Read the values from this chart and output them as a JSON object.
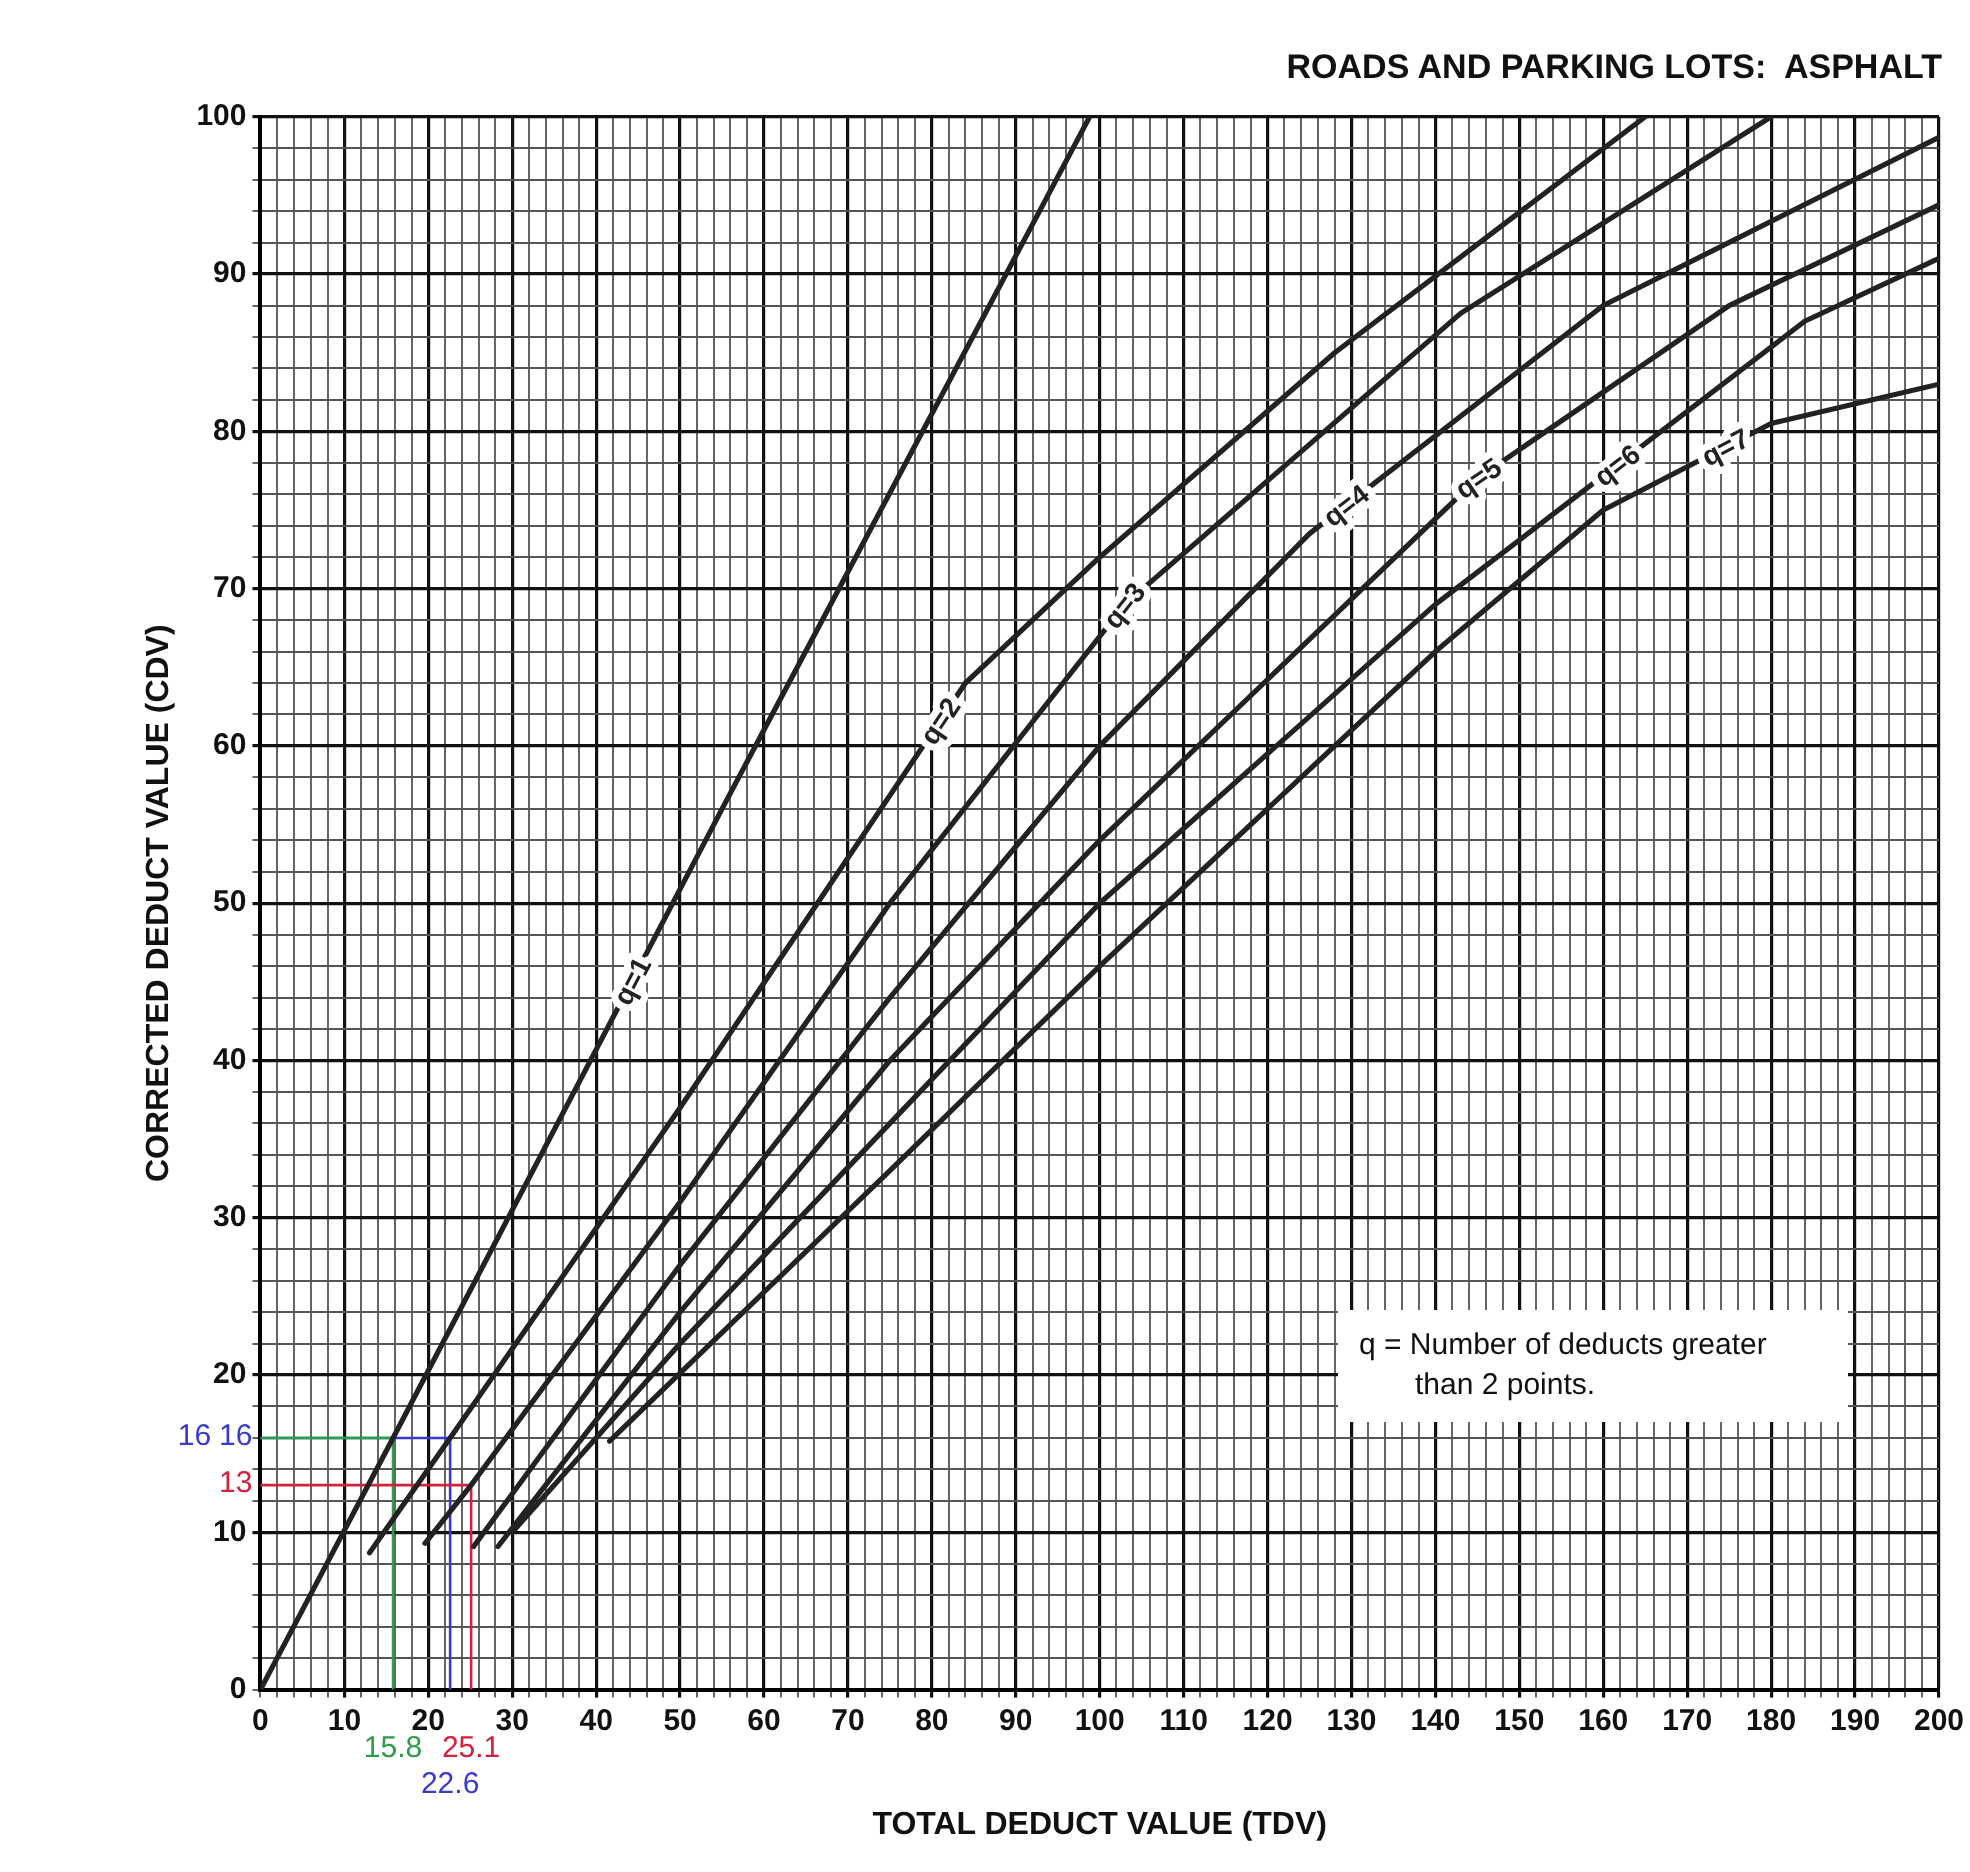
{
  "chart_data": {
    "type": "line",
    "title": "ROADS AND PARKING LOTS:  ASPHALT",
    "xlabel": "TOTAL DEDUCT VALUE (TDV)",
    "ylabel": "CORRECTED DEDUCT VALUE (CDV)",
    "annotations": [
      "q = Number of deducts greater than 2 points.",
      {
        "text": "13",
        "x": 0,
        "y": 13
      },
      {
        "text": "16",
        "x": 0,
        "y": 16
      },
      {
        "text": "16",
        "x": 0,
        "y": 16
      },
      {
        "text": "15.8",
        "x": 15.8,
        "y": 0
      },
      {
        "text": "25.1",
        "x": 25.1,
        "y": 0
      },
      {
        "text": "22.6",
        "x": 22.6,
        "y": 0
      }
    ],
    "xlim": [
      0,
      200
    ],
    "ylim": [
      0,
      100
    ],
    "xticks": [
      0,
      {
        "value": 2,
        "label": null
      },
      {
        "value": 4,
        "label": null
      },
      {
        "value": 6,
        "label": null
      },
      {
        "value": 8,
        "label": null
      },
      10,
      {
        "value": 12,
        "label": null
      },
      {
        "value": 14,
        "label": null
      },
      {
        "value": 16,
        "label": null
      },
      {
        "value": 18,
        "label": null
      },
      20,
      {
        "value": 22,
        "label": null
      },
      {
        "value": 24,
        "label": null
      },
      {
        "value": 26,
        "label": null
      },
      {
        "value": 28,
        "label": null
      },
      30,
      {
        "value": 32,
        "label": null
      },
      {
        "value": 34,
        "label": null
      },
      {
        "value": 36,
        "label": null
      },
      {
        "value": 38,
        "label": null
      },
      40,
      {
        "value": 42,
        "label": null
      },
      {
        "value": 44,
        "label": null
      },
      {
        "value": 46,
        "label": null
      },
      {
        "value": 48,
        "label": null
      },
      50,
      {
        "value": 52,
        "label": null
      },
      {
        "value": 54,
        "label": null
      },
      {
        "value": 56,
        "label": null
      },
      {
        "value": 58,
        "label": null
      },
      60,
      {
        "value": 62,
        "label": null
      },
      {
        "value": 64,
        "label": null
      },
      {
        "value": 66,
        "label": null
      },
      {
        "value": 68,
        "label": null
      },
      70,
      {
        "value": 72,
        "label": null
      },
      {
        "value": 74,
        "label": null
      },
      {
        "value": 76,
        "label": null
      },
      {
        "value": 78,
        "label": null
      },
      80,
      {
        "value": 82,
        "label": null
      },
      {
        "value": 84,
        "label": null
      },
      {
        "value": 86,
        "label": null
      },
      {
        "value": 88,
        "label": null
      },
      90,
      {
        "value": 92,
        "label": null
      },
      {
        "value": 94,
        "label": null
      },
      {
        "value": 96,
        "label": null
      },
      {
        "value": 98,
        "label": null
      },
      100,
      {
        "value": 102,
        "label": null
      },
      {
        "value": 104,
        "label": null
      },
      {
        "value": 106,
        "label": null
      },
      {
        "value": 108,
        "label": null
      },
      110,
      {
        "value": 112,
        "label": null
      },
      {
        "value": 114,
        "label": null
      },
      {
        "value": 116,
        "label": null
      },
      {
        "value": 118,
        "label": null
      },
      120,
      {
        "value": 122,
        "label": null
      },
      {
        "value": 124,
        "label": null
      },
      {
        "value": 126,
        "label": null
      },
      {
        "value": 128,
        "label": null
      },
      130,
      {
        "value": 132,
        "label": null
      },
      {
        "value": 134,
        "label": null
      },
      {
        "value": 136,
        "label": null
      },
      {
        "value": 138,
        "label": null
      },
      140,
      {
        "value": 142,
        "label": null
      },
      {
        "value": 144,
        "label": null
      },
      {
        "value": 146,
        "label": null
      },
      {
        "value": 148,
        "label": null
      },
      150,
      {
        "value": 152,
        "label": null
      },
      {
        "value": 154,
        "label": null
      },
      {
        "value": 156,
        "label": null
      },
      {
        "value": 158,
        "label": null
      },
      160,
      {
        "value": 162,
        "label": null
      },
      {
        "value": 164,
        "label": null
      },
      {
        "value": 166,
        "label": null
      },
      {
        "value": 168,
        "label": null
      },
      170,
      {
        "value": 172,
        "label": null
      },
      {
        "value": 174,
        "label": null
      },
      {
        "value": 176,
        "label": null
      },
      {
        "value": 178,
        "label": null
      },
      180,
      {
        "value": 182,
        "label": null
      },
      {
        "value": 184,
        "label": null
      },
      {
        "value": 186,
        "label": null
      },
      {
        "value": 188,
        "label": null
      },
      190,
      {
        "value": 192,
        "label": null
      },
      {
        "value": 194,
        "label": null
      },
      {
        "value": 196,
        "label": null
      },
      {
        "value": 198,
        "label": null
      },
      200
    ],
    "yticks": [
      0,
      {
        "value": 2,
        "label": null
      },
      {
        "value": 4,
        "label": null
      },
      {
        "value": 6,
        "label": null
      },
      {
        "value": 8,
        "label": null
      },
      10,
      {
        "value": 12,
        "label": null
      },
      {
        "value": 14,
        "label": null
      },
      {
        "value": 16,
        "label": null
      },
      {
        "value": 18,
        "label": null
      },
      20,
      {
        "value": 22,
        "label": null
      },
      {
        "value": 24,
        "label": null
      },
      {
        "value": 26,
        "label": null
      },
      {
        "value": 28,
        "label": null
      },
      30,
      {
        "value": 32,
        "label": null
      },
      {
        "value": 34,
        "label": null
      },
      {
        "value": 36,
        "label": null
      },
      {
        "value": 38,
        "label": null
      },
      40,
      {
        "value": 42,
        "label": null
      },
      {
        "value": 44,
        "label": null
      },
      {
        "value": 46,
        "label": null
      },
      {
        "value": 48,
        "label": null
      },
      50,
      {
        "value": 52,
        "label": null
      },
      {
        "value": 54,
        "label": null
      },
      {
        "value": 56,
        "label": null
      },
      {
        "value": 58,
        "label": null
      },
      60,
      {
        "value": 62,
        "label": null
      },
      {
        "value": 64,
        "label": null
      },
      {
        "value": 66,
        "label": null
      },
      {
        "value": 68,
        "label": null
      },
      70,
      {
        "value": 72,
        "label": null
      },
      {
        "value": 74,
        "label": null
      },
      {
        "value": 76,
        "label": null
      },
      {
        "value": 78,
        "label": null
      },
      80,
      {
        "value": 82,
        "label": null
      },
      {
        "value": 84,
        "label": null
      },
      {
        "value": 86,
        "label": null
      },
      {
        "value": 88,
        "label": null
      },
      90,
      {
        "value": 92,
        "label": null
      },
      {
        "value": 94,
        "label": null
      },
      {
        "value": 96,
        "label": null
      },
      {
        "value": 98,
        "label": null
      },
      100
    ],
    "grid": true,
    "legend": false,
    "marker": "none",
    "line_style": "solid",
    "series": [
      {
        "name": "q=1",
        "color": "#222222",
        "x": [
          0,
          15.8,
          55,
          98.8
        ],
        "values": [
          0,
          16,
          56,
          100
        ]
      },
      {
        "name": "q=2",
        "color": "#222222",
        "x": [
          13,
          22.6,
          50,
          84,
          100,
          128,
          165
        ],
        "values": [
          8.7,
          16,
          37,
          64,
          72,
          85,
          100
        ]
      },
      {
        "name": "q=3",
        "color": "#222222",
        "x": [
          19.6,
          25.1,
          50,
          75,
          103,
          143,
          180
        ],
        "values": [
          9.3,
          13,
          31,
          50,
          69,
          87.5,
          100
        ]
      },
      {
        "name": "q=4",
        "color": "#222222",
        "x": [
          25.4,
          50,
          75,
          100,
          125,
          160,
          200
        ],
        "values": [
          9.1,
          27,
          44,
          60,
          73.5,
          88,
          98.7
        ]
      },
      {
        "name": "q=5",
        "color": "#222222",
        "x": [
          28.3,
          50,
          75,
          100,
          145,
          175,
          200
        ],
        "values": [
          9.1,
          24,
          40,
          54,
          77,
          88,
          94.4
        ]
      },
      {
        "name": "q=6",
        "color": "#222222",
        "x": [
          30,
          50,
          75,
          100,
          140,
          184,
          200
        ],
        "values": [
          10,
          22,
          36,
          50,
          69,
          87,
          91
        ]
      },
      {
        "name": "q=7",
        "color": "#222222",
        "x": [
          41.6,
          75,
          100,
          140,
          160,
          180,
          200
        ],
        "values": [
          15.8,
          33,
          46,
          66,
          75,
          80.5,
          83
        ]
      },
      {
        "color": "#d4213d",
        "x": [
          0,
          25.1,
          25.1
        ],
        "values": [
          13,
          13,
          0
        ]
      },
      {
        "color": "#2e9e4a",
        "x": [
          0,
          15.8,
          15.8
        ],
        "values": [
          16,
          16,
          0
        ]
      },
      {
        "color": "#3a3ad0",
        "x": [
          0,
          22.6,
          22.6
        ],
        "values": [
          16,
          16,
          0
        ]
      }
    ]
  }
}
